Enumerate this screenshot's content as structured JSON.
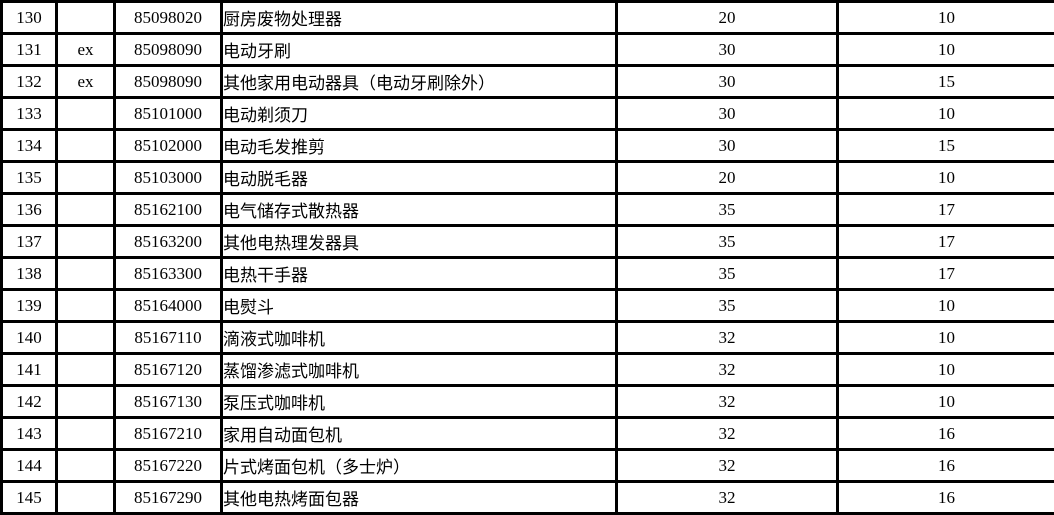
{
  "colors": {
    "border": "#000000",
    "background": "#ffffff",
    "text": "#000000"
  },
  "table": {
    "rows": [
      {
        "no": "130",
        "ex": "",
        "hs_code": "85098020",
        "description": "厨房废物处理器",
        "rate1": "20",
        "rate2": "10"
      },
      {
        "no": "131",
        "ex": "ex",
        "hs_code": "85098090",
        "description": "电动牙刷",
        "rate1": "30",
        "rate2": "10"
      },
      {
        "no": "132",
        "ex": "ex",
        "hs_code": "85098090",
        "description": "其他家用电动器具（电动牙刷除外）",
        "rate1": "30",
        "rate2": "15"
      },
      {
        "no": "133",
        "ex": "",
        "hs_code": "85101000",
        "description": "电动剃须刀",
        "rate1": "30",
        "rate2": "10"
      },
      {
        "no": "134",
        "ex": "",
        "hs_code": "85102000",
        "description": "电动毛发推剪",
        "rate1": "30",
        "rate2": "15"
      },
      {
        "no": "135",
        "ex": "",
        "hs_code": "85103000",
        "description": "电动脱毛器",
        "rate1": "20",
        "rate2": "10"
      },
      {
        "no": "136",
        "ex": "",
        "hs_code": "85162100",
        "description": "电气储存式散热器",
        "rate1": "35",
        "rate2": "17"
      },
      {
        "no": "137",
        "ex": "",
        "hs_code": "85163200",
        "description": "其他电热理发器具",
        "rate1": "35",
        "rate2": "17"
      },
      {
        "no": "138",
        "ex": "",
        "hs_code": "85163300",
        "description": "电热干手器",
        "rate1": "35",
        "rate2": "17"
      },
      {
        "no": "139",
        "ex": "",
        "hs_code": "85164000",
        "description": "电熨斗",
        "rate1": "35",
        "rate2": "10"
      },
      {
        "no": "140",
        "ex": "",
        "hs_code": "85167110",
        "description": "滴液式咖啡机",
        "rate1": "32",
        "rate2": "10"
      },
      {
        "no": "141",
        "ex": "",
        "hs_code": "85167120",
        "description": "蒸馏渗滤式咖啡机",
        "rate1": "32",
        "rate2": "10"
      },
      {
        "no": "142",
        "ex": "",
        "hs_code": "85167130",
        "description": "泵压式咖啡机",
        "rate1": "32",
        "rate2": "10"
      },
      {
        "no": "143",
        "ex": "",
        "hs_code": "85167210",
        "description": "家用自动面包机",
        "rate1": "32",
        "rate2": "16"
      },
      {
        "no": "144",
        "ex": "",
        "hs_code": "85167220",
        "description": "片式烤面包机（多士炉）",
        "rate1": "32",
        "rate2": "16"
      },
      {
        "no": "145",
        "ex": "",
        "hs_code": "85167290",
        "description": "其他电热烤面包器",
        "rate1": "32",
        "rate2": "16"
      }
    ]
  }
}
